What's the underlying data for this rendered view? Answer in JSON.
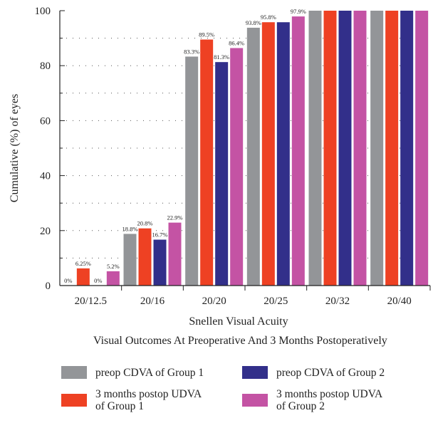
{
  "chart_data": {
    "type": "bar",
    "xlabel": "Snellen Visual Acuity",
    "ylabel": "Cumulative (%) of eyes",
    "subtitle": "Visual Outcomes At Preoperative And 3 Months Postoperatively",
    "ylim": [
      0,
      100
    ],
    "yticks": [
      "0",
      "20",
      "40",
      "60",
      "80",
      "100"
    ],
    "grid": "dotted horizontal",
    "legend_position": "bottom",
    "categories": [
      "20/12.5",
      "20/16",
      "20/20",
      "20/25",
      "20/32",
      "20/40"
    ],
    "series": [
      {
        "name": "preop CDVA of Group 1",
        "color": "#939598",
        "values": [
          0,
          18.8,
          83.3,
          93.8,
          100,
          100
        ],
        "labels": [
          "0%",
          "18.8%",
          "83.3%",
          "93.8%",
          "",
          ""
        ]
      },
      {
        "name": "3 months postop UDVA of Group 1",
        "color": "#ee4123",
        "values": [
          6.25,
          20.8,
          89.5,
          95.8,
          100,
          100
        ],
        "labels": [
          "6.25%",
          "20.8%",
          "89.5%",
          "95.8%",
          "",
          ""
        ]
      },
      {
        "name": "preop CDVA of Group 2",
        "color": "#322f8a",
        "values": [
          0,
          16.7,
          81.3,
          95.8,
          100,
          100
        ],
        "labels": [
          "0%",
          "16.7%",
          "81.3%",
          "",
          "",
          ""
        ]
      },
      {
        "name": "3 months postop UDVA of Group 2",
        "color": "#c453a4",
        "values": [
          5.2,
          22.9,
          86.4,
          97.9,
          100,
          100
        ],
        "labels": [
          "5.2%",
          "22.9%",
          "86.4%",
          "97.9%",
          "",
          ""
        ]
      }
    ]
  },
  "legend": [
    {
      "lines": [
        "preop CDVA of Group 1"
      ],
      "color": "#939598"
    },
    {
      "lines": [
        "preop CDVA of Group 2"
      ],
      "color": "#322f8a"
    },
    {
      "lines": [
        "3 months postop UDVA",
        "of Group 1"
      ],
      "color": "#ee4123"
    },
    {
      "lines": [
        "3 months postop UDVA",
        "of Group 2"
      ],
      "color": "#c453a4"
    }
  ]
}
